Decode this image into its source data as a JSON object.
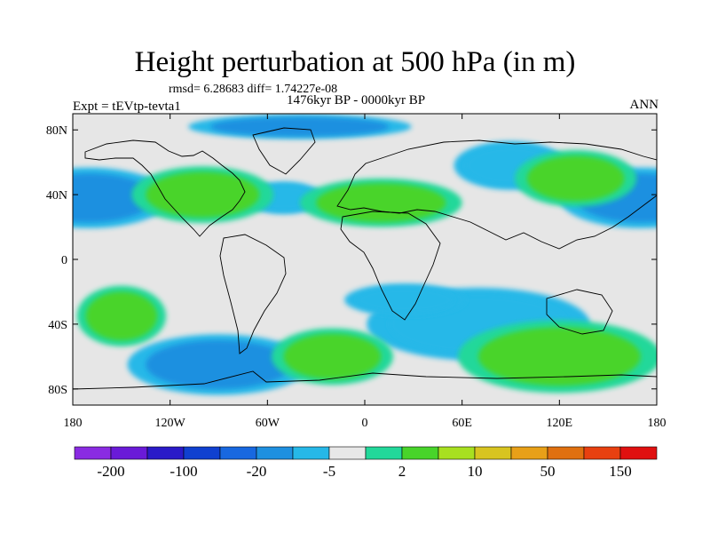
{
  "plot": {
    "title": "Height perturbation at 500 hPa (in m)",
    "stats": "rmsd= 6.28683 diff= 1.74227e-08",
    "experiment": "Expt = tEVtp-tevta1",
    "period": "1476kyr BP - 0000kyr BP",
    "season": "ANN"
  },
  "axes": {
    "lat_ticks": [
      "80N",
      "40N",
      "0",
      "40S",
      "80S"
    ],
    "lat_values": [
      80,
      40,
      0,
      -40,
      -80
    ],
    "lon_ticks": [
      "180",
      "120W",
      "60W",
      "0",
      "60E",
      "120E",
      "180"
    ],
    "lon_values": [
      -180,
      -120,
      -60,
      0,
      60,
      120,
      180
    ],
    "lat_range": [
      -90,
      90
    ],
    "lon_range": [
      -180,
      180
    ]
  },
  "colorbar": {
    "colors": [
      "#8a2be2",
      "#6a1ad8",
      "#2a1ac8",
      "#1040d0",
      "#1868e0",
      "#1e90e0",
      "#26b8e8",
      "#e8e8e8",
      "#22d89a",
      "#48d42a",
      "#a8e020",
      "#d8c420",
      "#e8a018",
      "#e07010",
      "#e84010",
      "#e01010"
    ],
    "tick_labels": [
      "-200",
      "-100",
      "-20",
      "-5",
      "2",
      "10",
      "50",
      "150"
    ]
  },
  "chart_data": {
    "type": "heatmap",
    "title": "Height perturbation at 500 hPa (in m)",
    "subtitle": "1476kyr BP - 0000kyr BP",
    "xlabel": "",
    "ylabel": "",
    "x_ticks": [
      "180",
      "120W",
      "60W",
      "0",
      "60E",
      "120E",
      "180"
    ],
    "y_ticks": [
      "80N",
      "40N",
      "0",
      "40S",
      "80S"
    ],
    "xlim": [
      -180,
      180
    ],
    "ylim": [
      -90,
      90
    ],
    "color_levels": [
      "-200",
      "-100",
      "-20",
      "-5",
      "2",
      "10",
      "50",
      "150"
    ],
    "features": [
      {
        "lon": -170,
        "lat": 38,
        "level": "-20",
        "rx": 40,
        "ry": 15
      },
      {
        "lon": 170,
        "lat": 38,
        "level": "-20",
        "rx": 40,
        "ry": 15
      },
      {
        "lon": 90,
        "lat": 58,
        "level": "-5",
        "rx": 28,
        "ry": 12
      },
      {
        "lon": -40,
        "lat": 82,
        "level": "-20",
        "rx": 55,
        "ry": 6
      },
      {
        "lon": -50,
        "lat": 38,
        "level": "-5",
        "rx": 20,
        "ry": 8
      },
      {
        "lon": -90,
        "lat": -65,
        "level": "-20",
        "rx": 45,
        "ry": 15
      },
      {
        "lon": 70,
        "lat": -40,
        "level": "-5",
        "rx": 55,
        "ry": 18
      },
      {
        "lon": 25,
        "lat": -25,
        "level": "-5",
        "rx": 30,
        "ry": 8
      },
      {
        "lon": -150,
        "lat": -35,
        "level": "10",
        "rx": 22,
        "ry": 15
      },
      {
        "lon": 120,
        "lat": -60,
        "level": "10",
        "rx": 50,
        "ry": 18
      },
      {
        "lon": -100,
        "lat": 40,
        "level": "10",
        "rx": 35,
        "ry": 14
      },
      {
        "lon": 10,
        "lat": 35,
        "level": "10",
        "rx": 40,
        "ry": 12
      },
      {
        "lon": 130,
        "lat": 50,
        "level": "10",
        "rx": 30,
        "ry": 14
      },
      {
        "lon": -20,
        "lat": -60,
        "level": "10",
        "rx": 30,
        "ry": 14
      }
    ]
  }
}
